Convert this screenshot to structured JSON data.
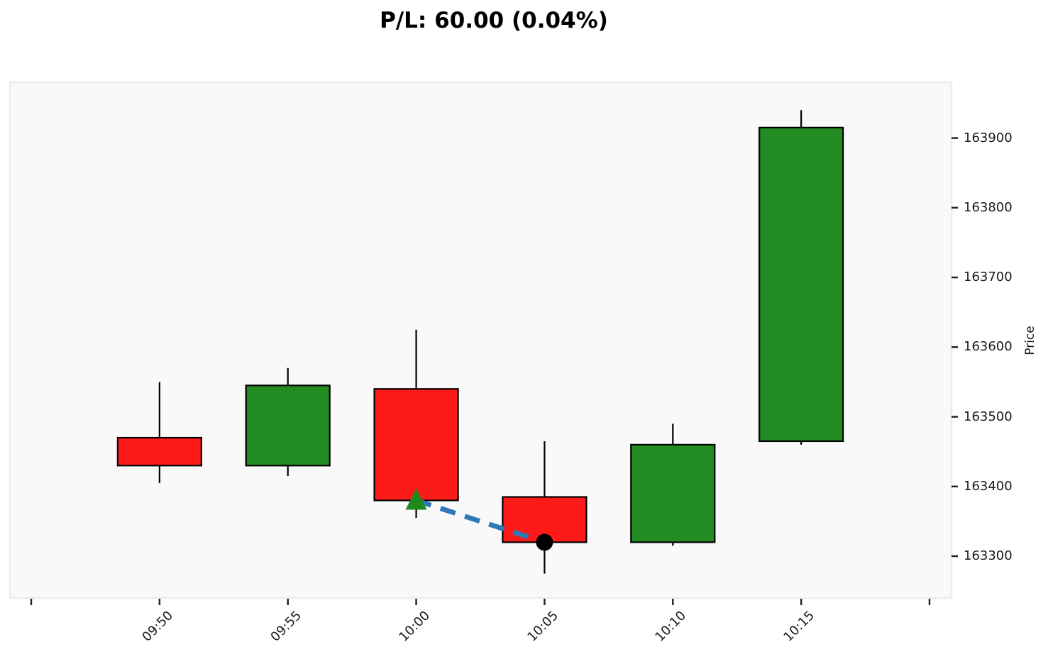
{
  "title": "P/L: 60.00 (0.04%)",
  "chart_data": {
    "type": "candlestick",
    "title": "P/L: 60.00 (0.04%)",
    "ylabel": "Price",
    "xlabel": "",
    "grid": false,
    "legend": null,
    "plot_bg": "#F9F9F9",
    "plot_border": "#ECECEC",
    "ylim": [
      163240,
      163980
    ],
    "y_ticks": [
      163300,
      163400,
      163500,
      163600,
      163700,
      163800,
      163900
    ],
    "x_labels": [
      "09:50",
      "09:55",
      "10:00",
      "10:05",
      "10:10",
      "10:15"
    ],
    "x_edge_ticks_unlabeled": 2,
    "candles": [
      {
        "time": "09:50",
        "open": 163470,
        "high": 163550,
        "low": 163405,
        "close": 163430
      },
      {
        "time": "09:55",
        "open": 163430,
        "high": 163570,
        "low": 163415,
        "close": 163545
      },
      {
        "time": "10:00",
        "open": 163540,
        "high": 163625,
        "low": 163355,
        "close": 163380
      },
      {
        "time": "10:05",
        "open": 163385,
        "high": 163465,
        "low": 163275,
        "close": 163320
      },
      {
        "time": "10:10",
        "open": 163320,
        "high": 163490,
        "low": 163315,
        "close": 163460
      },
      {
        "time": "10:15",
        "open": 163465,
        "high": 163940,
        "low": 163460,
        "close": 163915
      }
    ],
    "colors": {
      "up": "#228B22",
      "down": "#FF1A1A",
      "wick": "#000000",
      "body_border": "#000000"
    },
    "trade": {
      "entry": {
        "time": "10:00",
        "price": 163380,
        "marker": "triangle-up",
        "color": "#1E8A1E"
      },
      "exit": {
        "time": "10:05",
        "price": 163320,
        "marker": "circle",
        "color": "#000000"
      },
      "line_color": "#2E78B8",
      "line_style": "dashed",
      "pl_value": "60.00",
      "pl_percent": "0.04%"
    }
  }
}
